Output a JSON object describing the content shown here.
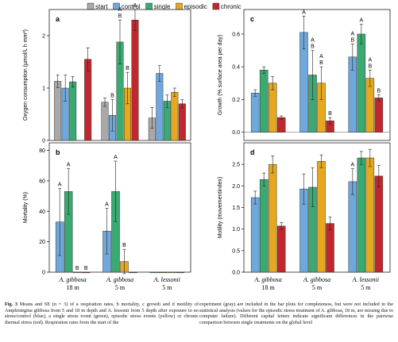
{
  "legend": [
    {
      "label": "start",
      "color": "#a9a9a9"
    },
    {
      "label": "control",
      "color": "#6fa8dc"
    },
    {
      "label": "single",
      "color": "#3aaa72"
    },
    {
      "label": "episodic",
      "color": "#e6a81e"
    },
    {
      "label": "chronic",
      "color": "#c0282d"
    }
  ],
  "caption": {
    "fig_label": "Fig. 3",
    "left": "Means and SE (n = 3) of a respiration rates, b mortality, c growth and d motility of Amphistegina gibbosa from 5 and 18 m depth and A. lessonii from 5 depth after exposure to no stress/control (blue), a single stress event (green), episodic stress events (yellow) or chronic thermal stress (red). Respiration rates from the start of the",
    "right": "experiment (gray) are included in the bar plots for completeness, but were not included in the statistical analysis (values for the episodic stress treatment of A. gibbosa, 18 m, are missing due to computer failure). Different capital letters indicate significant differences in the pairwise comparison between single treatments on the global level"
  },
  "chart_data": [
    {
      "panel": "a",
      "type": "bar",
      "ylabel": "Oxygen consumption (µmol/L h mm²)",
      "ylim": [
        0,
        2.5
      ],
      "yticks": [
        "0",
        "1",
        "2"
      ],
      "groups": [
        "18 m",
        "5 m",
        "5 m"
      ],
      "series": [
        {
          "name": "start",
          "values": [
            1.13,
            0.73,
            0.43
          ],
          "se": [
            0.12,
            0.08,
            0.2
          ]
        },
        {
          "name": "control",
          "values": [
            1.0,
            0.48,
            1.28
          ],
          "se": [
            0.25,
            0.3,
            0.15
          ]
        },
        {
          "name": "single",
          "values": [
            1.12,
            1.88,
            0.75
          ],
          "se": [
            0.1,
            0.42,
            0.12
          ]
        },
        {
          "name": "episodic",
          "values": [
            null,
            1.0,
            0.92
          ],
          "se": [
            null,
            0.3,
            0.08
          ]
        },
        {
          "name": "chronic",
          "values": [
            1.55,
            2.3,
            0.7
          ],
          "se": [
            0.22,
            0.2,
            0.08
          ]
        }
      ],
      "letters": [
        {
          "group": 1,
          "series": 1,
          "text": "B"
        },
        {
          "group": 1,
          "series": 2,
          "text": "A\nB"
        },
        {
          "group": 1,
          "series": 3,
          "text": "B"
        },
        {
          "group": 1,
          "series": 4,
          "text": "A"
        }
      ]
    },
    {
      "panel": "b",
      "type": "bar",
      "ylabel": "Mortality (%)",
      "ylim": [
        0,
        85
      ],
      "yticks": [
        "0",
        "20",
        "40",
        "60",
        "80"
      ],
      "groups": [
        "A. gibbosa\n18 m",
        "A. gibbosa\n5 m",
        "A. lessonii\n5 m"
      ],
      "series": [
        {
          "name": "control",
          "values": [
            33,
            27,
            0
          ],
          "se": [
            22,
            15,
            0
          ]
        },
        {
          "name": "single",
          "values": [
            53,
            53,
            0
          ],
          "se": [
            15,
            20,
            0
          ]
        },
        {
          "name": "episodic",
          "values": [
            0,
            7,
            0
          ],
          "se": [
            0,
            8,
            0
          ]
        },
        {
          "name": "chronic",
          "values": [
            0,
            0,
            0
          ],
          "se": [
            0,
            0,
            0
          ]
        }
      ],
      "letters": [
        {
          "group": 0,
          "series": 0,
          "text": "A"
        },
        {
          "group": 0,
          "series": 1,
          "text": "A"
        },
        {
          "group": 0,
          "series": 2,
          "text": "B"
        },
        {
          "group": 0,
          "series": 3,
          "text": "B"
        },
        {
          "group": 1,
          "series": 0,
          "text": "A"
        },
        {
          "group": 1,
          "series": 1,
          "text": "A"
        },
        {
          "group": 1,
          "series": 2,
          "text": "B"
        }
      ]
    },
    {
      "panel": "c",
      "type": "bar",
      "ylabel": "Growth (% surface area per day)",
      "ylim": [
        -0.05,
        0.75
      ],
      "yticks": [
        "0.0",
        "0.2",
        "0.4",
        "0.6"
      ],
      "groups": [
        "18 m",
        "5 m",
        "5 m"
      ],
      "series": [
        {
          "name": "control",
          "values": [
            0.24,
            0.61,
            0.46
          ],
          "se": [
            0.02,
            0.1,
            0.08
          ]
        },
        {
          "name": "single",
          "values": [
            0.38,
            0.35,
            0.6
          ],
          "se": [
            0.02,
            0.15,
            0.06
          ]
        },
        {
          "name": "episodic",
          "values": [
            0.3,
            0.3,
            0.33
          ],
          "se": [
            0.04,
            0.1,
            0.05
          ]
        },
        {
          "name": "chronic",
          "values": [
            0.09,
            0.07,
            0.21
          ],
          "se": [
            0.01,
            0.02,
            0.02
          ]
        }
      ],
      "letters": [
        {
          "group": 1,
          "series": 0,
          "text": "A"
        },
        {
          "group": 1,
          "series": 1,
          "text": "A\nB"
        },
        {
          "group": 1,
          "series": 2,
          "text": "A\nB"
        },
        {
          "group": 1,
          "series": 3,
          "text": "B"
        },
        {
          "group": 2,
          "series": 0,
          "text": "A\nB"
        },
        {
          "group": 2,
          "series": 1,
          "text": "A"
        },
        {
          "group": 2,
          "series": 2,
          "text": "A\nB"
        },
        {
          "group": 2,
          "series": 3,
          "text": "B"
        }
      ]
    },
    {
      "panel": "d",
      "type": "bar",
      "ylabel": "Motility (movementindex)",
      "ylim": [
        0,
        3.0
      ],
      "yticks": [
        "0.0",
        "0.5",
        "1.0",
        "1.5",
        "2.0",
        "2.5"
      ],
      "groups": [
        "A. gibbosa\n18 m",
        "A. gibbosa\n5 m",
        "A. lessonii\n5 m"
      ],
      "series": [
        {
          "name": "control",
          "values": [
            1.73,
            1.93,
            2.1
          ],
          "se": [
            0.15,
            0.35,
            0.3
          ]
        },
        {
          "name": "single",
          "values": [
            2.15,
            1.97,
            2.65
          ],
          "se": [
            0.15,
            0.45,
            0.15
          ]
        },
        {
          "name": "episodic",
          "values": [
            2.5,
            2.57,
            2.65
          ],
          "se": [
            0.2,
            0.15,
            0.2
          ]
        },
        {
          "name": "chronic",
          "values": [
            1.07,
            1.13,
            2.23
          ],
          "se": [
            0.08,
            0.15,
            0.25
          ]
        }
      ],
      "letters": [
        {
          "group": 2,
          "series": 0,
          "text": "A"
        }
      ]
    }
  ]
}
